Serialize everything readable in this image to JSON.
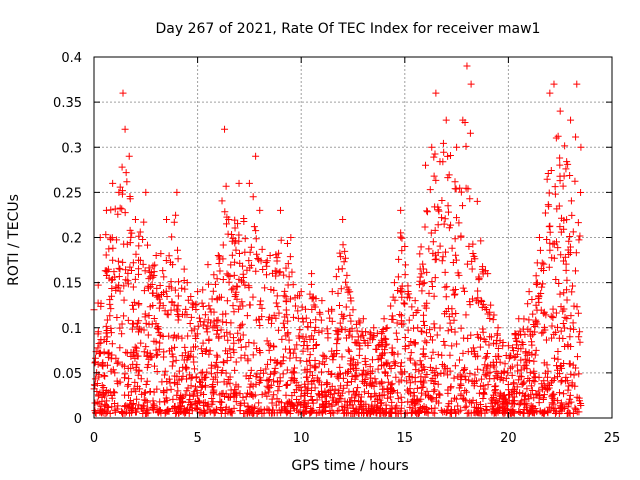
{
  "chart_data": {
    "type": "scatter",
    "title": "Day 267 of 2021, Rate Of TEC Index for receiver maw1",
    "xlabel": "GPS time / hours",
    "ylabel": "ROTI / TECUs",
    "xlim": [
      0,
      25
    ],
    "ylim": [
      0,
      0.4
    ],
    "xticks": [
      0,
      5,
      10,
      15,
      20,
      25
    ],
    "yticks": [
      0,
      0.05,
      0.1,
      0.15,
      0.2,
      0.25,
      0.3,
      0.35,
      0.4
    ],
    "xtick_labels": [
      "0",
      "5",
      "10",
      "15",
      "20",
      "25"
    ],
    "ytick_labels": [
      "0",
      "0.05",
      "0.1",
      "0.15",
      "0.2",
      "0.25",
      "0.3",
      "0.35",
      "0.4"
    ],
    "grid": true,
    "marker": "+",
    "color": "#ff0000",
    "series": [
      {
        "values_description": "dense point cloud approximated by envelope samples",
        "x": [
          0.0,
          0.3,
          0.6,
          0.9,
          1.2,
          1.4,
          1.5,
          1.7,
          2.0,
          2.5,
          3.0,
          3.5,
          4.0,
          4.5,
          5.0,
          5.5,
          6.0,
          6.3,
          6.5,
          7.0,
          7.5,
          7.8,
          8.0,
          8.5,
          9.0,
          9.5,
          10.0,
          10.5,
          11.0,
          11.5,
          12.0,
          12.5,
          13.0,
          13.5,
          14.0,
          14.5,
          14.8,
          15.0,
          15.5,
          16.0,
          16.3,
          16.5,
          17.0,
          17.5,
          17.8,
          18.0,
          18.2,
          18.5,
          19.0,
          19.5,
          20.0,
          20.5,
          21.0,
          21.5,
          22.0,
          22.2,
          22.5,
          23.0,
          23.3,
          23.5
        ],
        "y": [
          0.12,
          0.2,
          0.23,
          0.26,
          0.25,
          0.36,
          0.32,
          0.29,
          0.22,
          0.25,
          0.18,
          0.22,
          0.25,
          0.15,
          0.14,
          0.17,
          0.18,
          0.32,
          0.22,
          0.26,
          0.26,
          0.29,
          0.23,
          0.18,
          0.23,
          0.2,
          0.14,
          0.16,
          0.13,
          0.14,
          0.22,
          0.12,
          0.11,
          0.1,
          0.11,
          0.15,
          0.23,
          0.19,
          0.13,
          0.28,
          0.3,
          0.36,
          0.33,
          0.3,
          0.33,
          0.39,
          0.37,
          0.24,
          0.16,
          0.1,
          0.08,
          0.11,
          0.14,
          0.2,
          0.36,
          0.37,
          0.34,
          0.33,
          0.37,
          0.3
        ]
      }
    ]
  }
}
